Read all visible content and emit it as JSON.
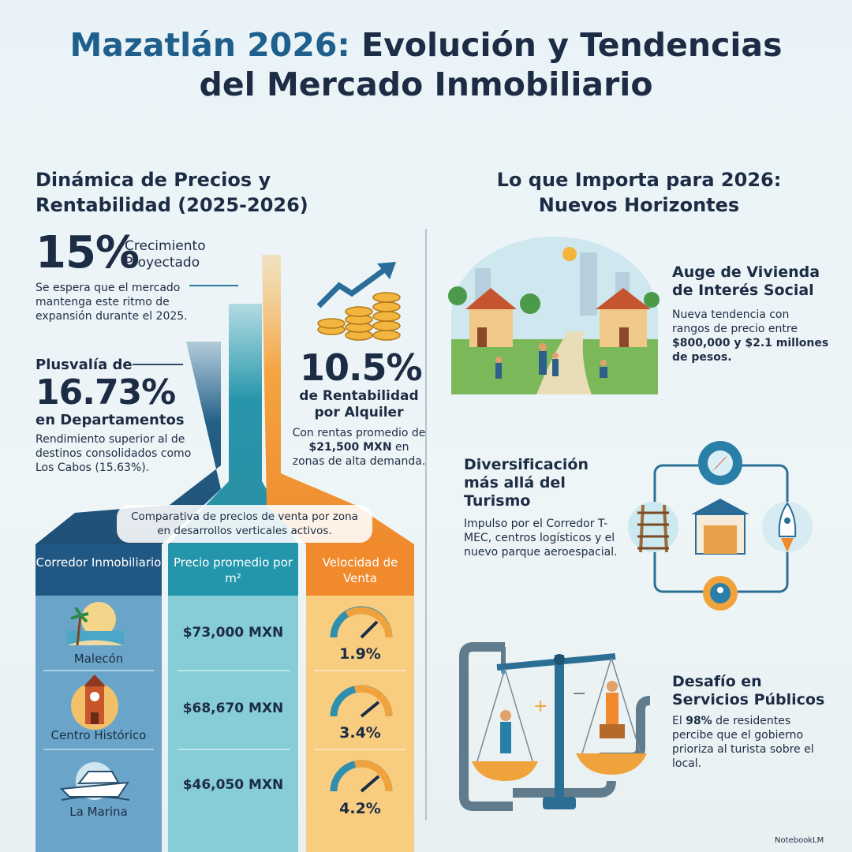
{
  "header": {
    "title_accent": "Mazatlán 2026:",
    "title_line1": "Evolución y Tendencias",
    "title_line2": "del Mercado Inmobiliario"
  },
  "left": {
    "heading": "Dinámica de Precios y Rentabilidad (2025-2026)",
    "growth": {
      "value": "15%",
      "label": "Crecimiento Proyectado",
      "desc": "Se espera que el mercado mantenga este ritmo de expansión durante el 2025."
    },
    "plusvalia": {
      "prefix": "Plusvalía de",
      "value": "16.73%",
      "suffix": "en Departamentos",
      "desc": "Rendimiento superior al de destinos consolidados como Los Cabos (15.63%)."
    },
    "rental": {
      "value": "10.5%",
      "label": "de Rentabilidad por Alquiler",
      "desc_start": "Con rentas promedio de",
      "desc_bold": "$21,500 MXN",
      "desc_end": "en zonas de alta demanda."
    },
    "callout": "Comparativa de precios de venta por zona en desarrollos verticales activos.",
    "table": {
      "headers": [
        "Corredor Inmobiliario",
        "Precio promedio por m²",
        "Velocidad de Venta"
      ],
      "rows": [
        [
          "Malecón",
          "$73,000 MXN",
          "1.9%"
        ],
        [
          "Centro Histórico",
          "$68,670 MXN",
          "3.4%"
        ],
        [
          "La Marina",
          "$46,050 MXN",
          "4.2%"
        ]
      ]
    }
  },
  "right": {
    "heading": "Lo que Importa para 2026: Nuevos Horizontes",
    "items": [
      {
        "title": "Auge de Vivienda de Interés Social",
        "desc": "Nueva tendencia con rangos de precio entre",
        "desc_bold": "$800,000 y $2.1 millones de pesos."
      },
      {
        "title": "Diversificación más allá del Turismo",
        "desc": "Impulso por el Corredor T-MEC, centros logísticos y el nuevo parque aeroespacial."
      },
      {
        "title": "Desafío en Servicios Públicos",
        "desc_start": "El",
        "desc_bold": "98%",
        "desc_end": "de residentes percibe que el gobierno prioriza al turista sobre el local."
      }
    ]
  },
  "footer": {
    "brand": "NotebookLM"
  }
}
